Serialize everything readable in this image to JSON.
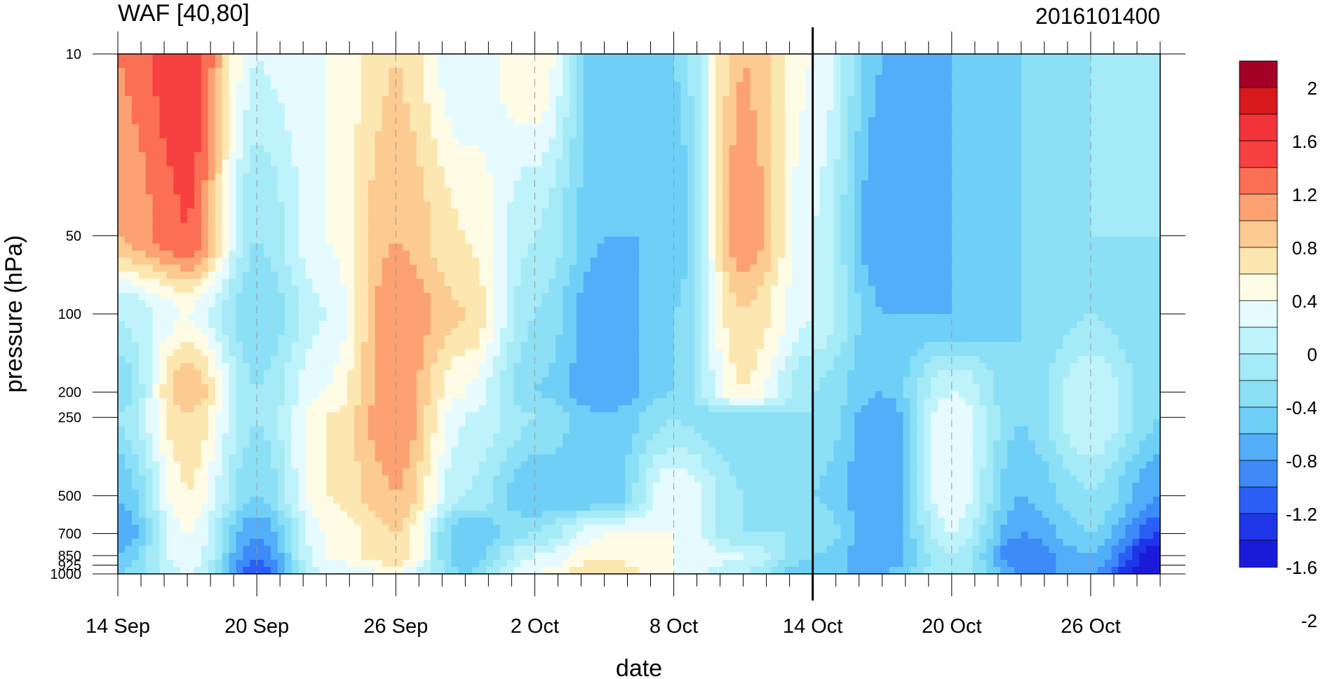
{
  "chart_data": {
    "type": "heatmap",
    "title": "WAF [40,80]",
    "subtitle": "2016101400",
    "xlabel": "date",
    "ylabel": "pressure (hPa)",
    "x_ticks": [
      "14 Sep",
      "20 Sep",
      "26 Sep",
      "2 Oct",
      "8 Oct",
      "14 Oct",
      "20 Oct",
      "26 Oct"
    ],
    "x_range": [
      "2016-09-14",
      "2016-10-29"
    ],
    "y_ticks": [
      10,
      50,
      100,
      200,
      250,
      500,
      700,
      850,
      925,
      1000
    ],
    "y_scale": "log",
    "y_range": [
      1000,
      10
    ],
    "reference_line": "2016-10-14",
    "colorbar": {
      "labels": [
        "2",
        "1.6",
        "1.2",
        "0.8",
        "0.4",
        "0",
        "-0.4",
        "-0.8",
        "-1.2",
        "-1.6",
        "-2"
      ],
      "levels": [
        2.2,
        2.0,
        1.8,
        1.6,
        1.4,
        1.2,
        1.0,
        0.8,
        0.6,
        0.4,
        0.2,
        0.0,
        -0.2,
        -0.4,
        -0.6,
        -0.8,
        -1.0,
        -1.2,
        -1.4,
        -1.6,
        -1.8,
        -2.0,
        -2.2
      ],
      "colors": [
        "#a50026",
        "#d7191c",
        "#f2333a",
        "#f74040",
        "#fb6f55",
        "#fca272",
        "#fccb91",
        "#fde7b0",
        "#fffce6",
        "#e6fbff",
        "#bff3fb",
        "#a5eaf7",
        "#8be0f5",
        "#6fcff7",
        "#52aef8",
        "#3d8af8",
        "#2b5ef5",
        "#1e36e8",
        "#1a1bd9"
      ]
    },
    "field_columns": [
      "14 Sep",
      "17 Sep",
      "20 Sep",
      "23 Sep",
      "26 Sep",
      "29 Sep",
      "2 Oct",
      "5 Oct",
      "8 Oct",
      "11 Oct",
      "14 Oct",
      "17 Oct",
      "20 Oct",
      "23 Oct",
      "26 Oct",
      "29 Oct"
    ],
    "field_rows_hPa": [
      10,
      50,
      100,
      200,
      250,
      500,
      700,
      850,
      1000
    ],
    "values": [
      [
        1.2,
        1.6,
        0.2,
        0.4,
        0.8,
        0.2,
        0.6,
        -0.6,
        -0.4,
        1.0,
        0.4,
        -0.6,
        -0.6,
        -0.4,
        -0.2,
        0.0
      ],
      [
        1.0,
        1.4,
        -0.2,
        0.4,
        1.0,
        0.6,
        0.0,
        -0.6,
        -0.6,
        1.2,
        0.2,
        -0.8,
        -0.6,
        -0.4,
        -0.2,
        -0.2
      ],
      [
        0.0,
        0.4,
        -0.4,
        0.2,
        1.2,
        0.8,
        -0.2,
        -0.8,
        -0.4,
        0.8,
        0.2,
        -0.6,
        -0.6,
        -0.4,
        -0.2,
        -0.4
      ],
      [
        -0.4,
        1.0,
        -0.2,
        0.4,
        1.2,
        0.4,
        -0.4,
        -0.8,
        -0.4,
        0.6,
        -0.2,
        -0.6,
        0.2,
        -0.4,
        0.2,
        -0.4
      ],
      [
        -0.2,
        0.8,
        -0.2,
        0.6,
        1.2,
        0.2,
        -0.2,
        -0.6,
        -0.2,
        -0.4,
        -0.2,
        -0.8,
        0.4,
        -0.4,
        0.2,
        -0.4
      ],
      [
        -0.6,
        0.6,
        -0.4,
        0.6,
        1.0,
        0.0,
        -0.6,
        -0.6,
        0.4,
        -0.2,
        -0.4,
        -0.8,
        0.4,
        -0.6,
        -0.2,
        -0.8
      ],
      [
        -0.8,
        0.4,
        -0.8,
        0.4,
        0.8,
        -0.6,
        -0.2,
        0.4,
        0.4,
        -0.2,
        -0.2,
        -0.8,
        0.2,
        -0.8,
        -0.4,
        -1.2
      ],
      [
        -0.6,
        0.4,
        -1.0,
        0.4,
        0.8,
        -0.6,
        0.2,
        0.6,
        0.4,
        0.2,
        -0.4,
        -0.8,
        0.0,
        -1.0,
        -0.6,
        -1.6
      ],
      [
        -0.4,
        0.2,
        -1.2,
        0.2,
        0.4,
        -0.4,
        0.4,
        0.8,
        0.4,
        0.0,
        -0.6,
        -0.6,
        0.0,
        -0.8,
        -0.8,
        -1.8
      ]
    ]
  }
}
